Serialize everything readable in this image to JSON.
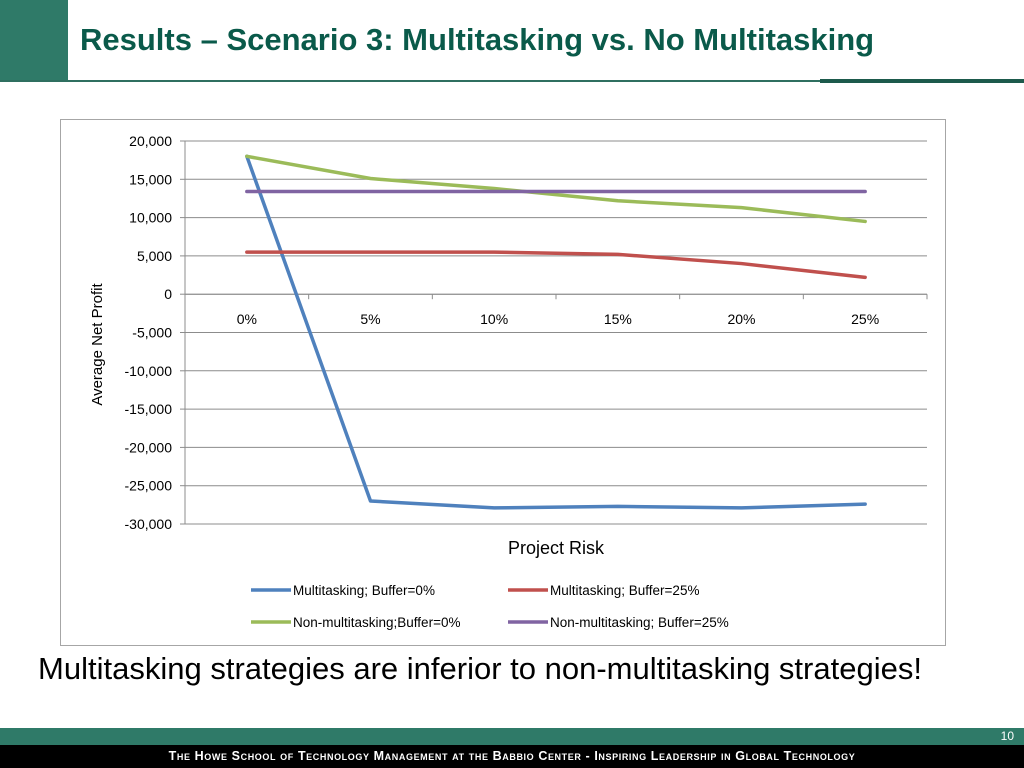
{
  "slide": {
    "title": "Results – Scenario 3: Multitasking vs. No Multitasking",
    "caption": "Multitasking strategies are inferior to non-multitasking strategies!",
    "slide_number": "10",
    "footer": "The Howe School of Technology Management at the Babbio Center - Inspiring Leadership in Global Technology",
    "colors": {
      "brand": "#2f7a68",
      "title": "#0a5a4a"
    }
  },
  "chart_data": {
    "type": "line",
    "categories": [
      "0%",
      "5%",
      "10%",
      "15%",
      "20%",
      "25%"
    ],
    "xlabel": "Project Risk",
    "ylabel": "Average Net Profit",
    "ylim": [
      -30000,
      20000
    ],
    "yticks": [
      20000,
      15000,
      10000,
      5000,
      0,
      -5000,
      -10000,
      -15000,
      -20000,
      -25000,
      -30000
    ],
    "ytick_labels": [
      "20,000",
      "15,000",
      "10,000",
      "5,000",
      "0",
      "-5,000",
      "-10,000",
      "-15,000",
      "-20,000",
      "-25,000",
      "-30,000"
    ],
    "grid": true,
    "legend_position": "bottom",
    "series": [
      {
        "name": "Multitasking; Buffer=0%",
        "color": "#4f81bd",
        "values": [
          18000,
          -27000,
          -27900,
          -27700,
          -27900,
          -27400
        ]
      },
      {
        "name": "Multitasking; Buffer=25%",
        "color": "#c0504d",
        "values": [
          5500,
          5500,
          5500,
          5200,
          4000,
          2200
        ]
      },
      {
        "name": "Non-multitasking;Buffer=0%",
        "color": "#9bbb59",
        "values": [
          18000,
          15100,
          13800,
          12200,
          11300,
          9500
        ]
      },
      {
        "name": "Non-multitasking; Buffer=25%",
        "color": "#8064a2",
        "values": [
          13400,
          13400,
          13400,
          13400,
          13400,
          13400
        ]
      }
    ]
  }
}
